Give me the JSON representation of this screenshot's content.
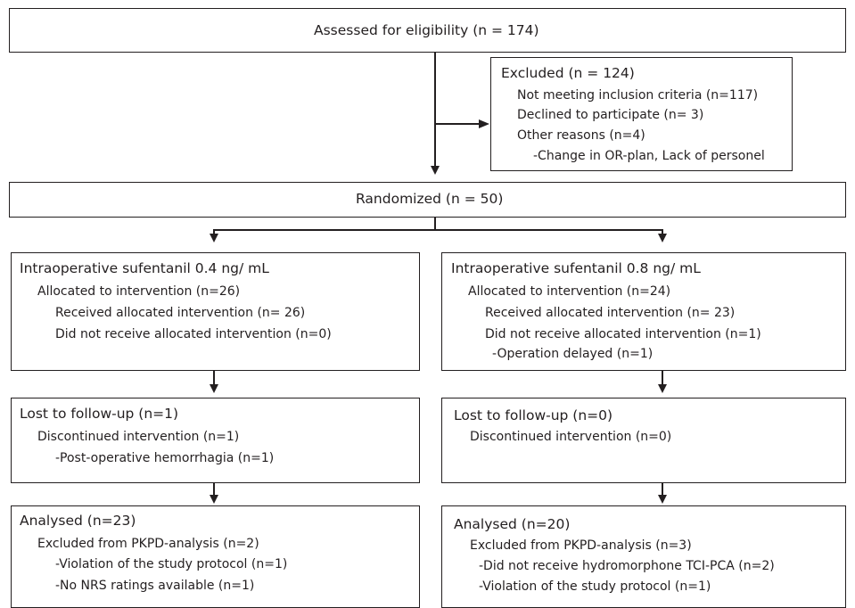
{
  "enrollment": {
    "assessed": "Assessed for eligibility (n = 174)",
    "excluded": {
      "title": "Excluded (n = 124)",
      "items": [
        "Not meeting inclusion criteria (n=117)",
        "Declined to participate (n= 3)",
        "Other reasons (n=4)",
        "-Change in OR-plan, Lack of personel"
      ]
    },
    "randomized": "Randomized (n = 50)"
  },
  "arms": [
    {
      "allocation": {
        "title": "Intraoperative sufentanil 0.4 ng/ mL",
        "items": [
          "Allocated to intervention (n=26)",
          "Received allocated intervention (n= 26)",
          "Did not receive allocated intervention (n=0)"
        ]
      },
      "followup": {
        "title": "Lost to follow-up (n=1)",
        "items": [
          "Discontinued intervention (n=1)",
          "-Post-operative hemorrhagia (n=1)"
        ]
      },
      "analysis": {
        "title": "Analysed (n=23)",
        "items": [
          "Excluded from PKPD-analysis (n=2)",
          "-Violation of the study protocol (n=1)",
          "-No NRS ratings available (n=1)"
        ]
      }
    },
    {
      "allocation": {
        "title": "Intraoperative sufentanil 0.8 ng/ mL",
        "items": [
          "Allocated to intervention (n=24)",
          "Received allocated intervention (n= 23)",
          "Did not receive allocated intervention (n=1)",
          "-Operation delayed (n=1)"
        ]
      },
      "followup": {
        "title": "Lost to follow-up (n=0)",
        "items": [
          "Discontinued intervention (n=0)"
        ]
      },
      "analysis": {
        "title": "Analysed (n=20)",
        "items": [
          "Excluded from PKPD-analysis (n=3)",
          "-Did not receive hydromorphone TCI-PCA (n=2)",
          "-Violation of the study protocol (n=1)"
        ]
      }
    }
  ]
}
